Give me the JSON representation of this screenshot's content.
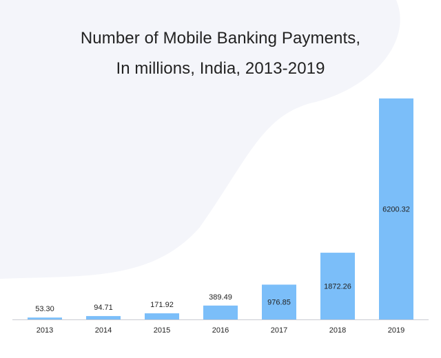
{
  "chart_data": {
    "type": "bar",
    "title_lines": [
      "Number of Mobile Banking Payments,",
      "In millions, India, 2013-2019"
    ],
    "categories": [
      "2013",
      "2014",
      "2015",
      "2016",
      "2017",
      "2018",
      "2019"
    ],
    "values": [
      53.3,
      94.71,
      171.92,
      389.49,
      976.85,
      1872.26,
      6200.32
    ],
    "value_labels": [
      "53.30",
      "94.71",
      "171.92",
      "389.49",
      "976.85",
      "1872.26",
      "6200.32"
    ],
    "xlabel": "",
    "ylabel": "",
    "grid": false,
    "legend": "none",
    "bar_color": "#7bbef9"
  }
}
